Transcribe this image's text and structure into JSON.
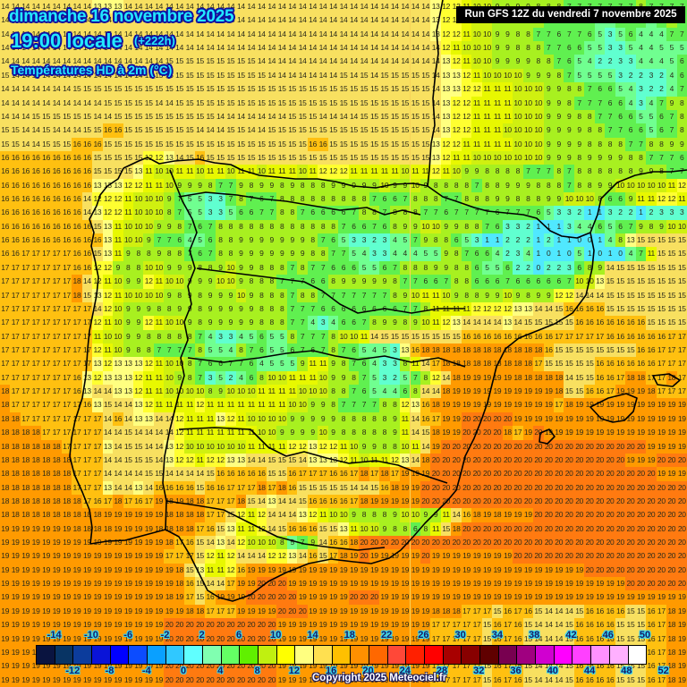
{
  "header": {
    "date": "dimanche 16 novembre 2025",
    "time": "19:00 locale",
    "lead": "(+222h)",
    "parameter": "Températures HD à 2m (°C)"
  },
  "run_banner": "Run GFS 12Z du vendredi 7 novembre 2025",
  "copyright": "Copyright 2025 Meteociel.fr",
  "legend": {
    "colors": [
      "#0a1440",
      "#083464",
      "#0c3c9c",
      "#0a14d8",
      "#0000ff",
      "#0c4cff",
      "#0aa0ff",
      "#30c8ff",
      "#60ffff",
      "#80ffb0",
      "#64ff64",
      "#60f000",
      "#c0f010",
      "#ffff00",
      "#ffff80",
      "#ffe050",
      "#ffc000",
      "#ff9000",
      "#ff6800",
      "#ff4838",
      "#ff2000",
      "#ff0000",
      "#a80000",
      "#880000",
      "#600000",
      "#780050",
      "#a00080",
      "#d000d0",
      "#ff00ff",
      "#ff40ff",
      "#ff90ff",
      "#ffb0ff",
      "#ffffff"
    ],
    "top_labels": [
      "-14",
      "-10",
      "-6",
      "-2",
      "2",
      "6",
      "10",
      "14",
      "18",
      "22",
      "26",
      "30",
      "34",
      "38",
      "42",
      "46",
      "50"
    ],
    "bottom_labels": [
      "-12",
      "-8",
      "-4",
      "0",
      "4",
      "8",
      "12",
      "16",
      "20",
      "24",
      "28",
      "32",
      "36",
      "40",
      "44",
      "48",
      "52"
    ]
  },
  "map": {
    "cols": 67,
    "rows": 46,
    "grid": [
      "14 14 14 14 14 14 14 14 14 13 13 13 14 14 14 14 14 14 14 14 14 14 14 14 14 14 14 14 14 14 14 14 14 14 14 14 14 14 14 14 14 14 13 12 12 11 10 10 9 9 9 9 8 8 8 7 7 7 7 7 7 7 8 7 7 7 7",
      "14 14 14 14 14 14 14 14 14 14 14 14 14 14 14 14 14 14 14 14 14 14 14 14 14 14 14 14 14 14 14 14 14 14 14 14 14 14 14 14 14 14 13 12 12 11 10 10 9 9 8 8 8 7 7 6 7 6 5 5 6 7 6 5 6 8 6",
      "14 14 14 14 14 14 14 14 14 14 14 14 14 14 14 14 14 14 14 14 14 14 14 14 14 14 14 14 14 14 14 14 14 14 14 14 14 14 14 14 14 14 13 12 12 11 10 10 9 9 8 8 7 7 6 7 7 6 5 3 5 6 4 4 4 7 7",
      "14 14 14 14 14 14 14 14 14 14 14 14 14 14 14 14 14 14 14 14 14 14 14 14 14 14 14 14 14 14 14 14 14 14 14 14 14 14 14 14 14 14 14 12 11 10 10 10 9 9 8 8 8 7 7 6 6 5 5 3 3 5 4 4 5 5 5",
      "14 14 14 14 14 14 14 14 14 14 14 14 14 14 14 14 15 15 15 15 15 15 15 15 15 14 14 14 14 14 14 14 14 14 14 14 14 14 14 14 14 14 14 13 12 11 10 10 9 9 9 9 8 8 7 6 5 4 2 2 3 3 4 4 4 5 6",
      "15 14 14 14 14 14 14 14 14 14 14 14 14 14 15 15 15 15 15 15 15 15 15 15 15 15 14 14 14 14 14 14 14 15 14 15 14 15 15 15 15 15 14 13 13 12 11 10 10 10 10 9 9 9 8 7 5 5 5 5 3 2 2 3 2 4 6",
      "14 14 14 14 14 14 14 15 15 15 15 15 15 15 15 15 15 15 15 15 15 15 15 15 15 15 15 15 15 15 15 15 15 15 15 15 15 15 15 15 15 15 14 13 13 12 12 11 11 11 10 10 10 9 9 8 8 7 6 6 5 4 3 2 2 4 7",
      "14 14 14 14 14 14 14 14 14 14 15 15 15 15 15 14 14 15 15 15 15 15 15 15 15 15 15 15 15 15 15 15 15 15 15 15 15 15 15 15 15 15 14 13 12 12 11 11 11 11 10 10 10 9 9 8 7 7 7 6 6 4 3 4 7 9 8",
      "14 14 14 15 15 15 15 15 15 14 14 15 15 15 15 15 15 15 15 15 15 14 14 14 14 14 14 14 15 15 15 14 14 14 14 15 15 15 15 15 15 15 14 13 12 12 11 11 11 11 10 10 10 9 9 9 8 8 7 7 6 6 5 5 6 7 8",
      "15 15 14 14 15 14 14 14 15 15 16 16 15 15 15 15 15 15 15 14 14 14 15 15 14 14 15 15 15 15 15 15 15 15 15 15 15 15 15 15 15 15 14 13 12 12 11 11 11 10 10 10 10 9 9 9 9 8 8 7 7 6 6 5 6 7 8",
      "15 15 14 14 15 15 15 16 16 16 15 15 15 15 15 15 15 15 15 15 15 15 15 15 15 15 15 15 15 15 16 16 15 15 15 15 15 15 15 15 15 15 13 12 12 11 11 11 11 11 10 10 10 9 9 9 9 8 8 8 8 7 7 8 8 9 9",
      "16 16 16 16 16 16 16 16 16 15 15 15 15 15 12 12 13 14 15 16 15 15 15 15 15 15 15 15 15 15 15 15 15 15 15 15 15 15 15 15 15 15 13 12 11 11 10 10 10 10 10 10 10 9 9 9 8 9 9 9 9 8 8 7 7 7 6",
      "16 16 16 16 16 16 16 16 16 15 15 15 15 13 11 10 10 11 11 10 11 11 10 11 11 10 11 11 11 10 11 12 12 12 11 11 11 11 11 10 11 11 12 11 10 9 9 8 8 8 8 7 7 7 8 7 8 8 8 8 8 8 9 9 8 7 7",
      "16 16 16 16 16 16 16 16 16 13 13 13 12 12 11 11 10 9 9 9 8 7 7 9 8 9 9 8 9 8 8 8 9 9 9 9 9 10 9 9 10 9 8 8 8 8 7 8 8 9 9 9 8 8 8 7 8 8 9 9 10 10 10 10 10 11 12",
      "16 16 16 16 16 16 16 16 14 12 12 12 11 10 10 10 9 7 5 5 3 3 7 8 7 6 7 8 8 8 8 8 8 8 8 8 7 6 6 7 8 8 8 7 7 8 8 8 9 9 8 8 8 9 9 10 10 10 8 6 6 9 11 11 12 12 11",
      "16 16 16 16 16 16 16 16 14 13 12 12 11 10 10 10 8 7 5 5 3 3 5 6 6 7 7 8 8 7 6 6 6 6 7 8 8 7 8 8 8 7 7 6 7 7 7 7 6 7 7 7 6 5 3 3 2 1 1 3 2 2 1 2 3 3 3",
      "16 16 16 16 16 16 16 16 16 15 13 11 10 10 10 9 9 8 7 6 7 8 8 8 8 8 8 8 8 8 8 8 8 7 6 6 7 6 8 9 9 10 10 9 9 8 8 7 6 3 3 2 1 1 1 3 4 4 6 5 6 7 9 8 9 10 10",
      "16 16 16 16 16 16 16 16 16 16 13 11 10 10 9 7 7 6 4 5 6 8 8 9 9 9 9 9 9 9 8 7 6 5 3 3 2 3 4 5 7 9 8 8 6 5 3 1 1 2 2 2 1 2 1 1 0 0 1 4 8 13 15 15 15 15 15",
      "16 16 17 17 17 17 17 16 16 15 13 11 9 8 8 9 8 8 7 6 7 8 8 9 9 9 9 9 9 9 8 8 7 7 5 4 3 3 4 4 4 5 5 9 8 7 6 6 4 2 3 4 1 0 1 0 5 1 0 1 0 4 7 11 15 15 15",
      "17 17 17 17 17 17 17 16 16 12 12 9 8 8 10 10 9 9 9 8 8 9 10 9 9 8 8 8 7 8 7 7 6 6 6 5 5 6 7 8 8 8 9 9 8 8 6 5 5 6 2 2 0 2 2 3 6 8 9 14 15 15 15 15 15 15 15",
      "17 17 17 17 17 17 17 18 14 12 11 10 9 9 12 11 10 10 9 9 9 10 10 9 8 8 8 7 7 7 6 6 8 9 9 9 9 9 8 7 7 6 6 7 8 8 6 6 6 7 6 6 6 6 6 7 10 10 13 15 15 15 15 15 15 15 15",
      "17 17 17 17 17 17 17 18 15 13 12 11 10 10 10 10 9 8 9 8 9 9 9 10 9 8 8 8 7 8 8 7 7 7 7 7 7 7 8 9 10 11 11 10 9 8 8 9 9 10 9 8 9 9 12 12 14 14 14 15 15 15 15 15 15 15 15",
      "17 17 17 17 17 17 17 17 17 14 12 10 9 9 9 8 8 9 9 8 9 9 9 9 9 8 8 8 7 7 7 6 6 6 6 6 6 6 6 7 7 8 11 11 11 11 12 12 12 12 13 13 14 14 15 16 16 16 16 15 15 15 15 15 15 15 15",
      "17 17 17 17 17 17 17 17 17 12 11 10 9 9 12 11 10 10 9 8 9 9 9 9 9 8 8 8 7 7 4 3 4 6 6 7 8 9 9 8 9 10 11 12 13 14 14 14 14 13 14 15 15 15 15 15 16 16 16 16 16 16 16 15 15 15 15",
      "17 17 17 17 17 17 17 17 17 11 10 10 9 9 8 8 8 8 8 7 4 3 3 4 5 6 5 5 8 7 7 7 8 10 10 11 14 15 15 15 15 15 15 15 15 16 16 16 16 16 16 16 16 16 17 17 17 17 17 16 16 16 16 16 16 17 17",
      "17 17 17 17 17 17 17 17 17 12 11 10 9 8 8 7 7 7 7 8 5 5 4 8 7 6 5 5 6 7 6 7 8 7 6 5 4 5 3 13 16 18 18 18 18 18 18 18 18 18 18 18 18 16 15 15 15 15 15 15 15 15 16 16 17 17 17",
      "17 17 17 17 17 17 17 17 17 13 12 13 13 13 12 11 10 10 8 7 6 6 7 7 6 4 5 5 5 9 11 11 9 8 7 6 4 3 3 8 11 14 17 18 18 18 18 18 18 18 18 18 17 15 15 15 15 15 16 16 16 16 16 16 17 17 17",
      "17 17 17 17 17 17 17 16 13 12 13 13 13 12 11 11 10 9 8 7 3 5 2 4 6 8 10 10 11 11 11 10 9 9 8 7 5 3 2 5 7 8 12 14 18 19 19 19 19 19 18 18 18 18 18 14 15 15 16 16 17 18 18 17 17 18 17",
      "18 17 17 17 17 17 17 16 13 14 14 13 13 12 11 11 10 10 10 10 8 9 10 10 10 11 11 11 11 10 10 10 8 8 7 6 5 4 4 6 8 14 14 18 19 19 19 19 19 19 19 19 19 19 18 15 15 16 16 17 19 19 19 18 17 17 17",
      "18 17 17 17 17 17 17 17 16 13 15 14 14 13 12 11 11 11 11 12 11 11 11 11 11 11 11 11 10 10 9 9 8 7 7 7 7 8 8 12 13 16 18 19 19 19 19 19 19 19 19 19 19 19 17 18 19 19 19 19 19 19 19 19 19 19 19",
      "18 18 17 17 17 17 17 17 17 17 14 16 14 13 13 14 14 12 11 11 11 13 12 11 10 10 10 10 9 9 9 9 9 8 8 8 8 8 9 11 14 16 17 19 19 20 20 20 20 20 19 19 19 19 19 19 19 19 19 19 19 19 19 19 19 19 19",
      "18 18 18 18 17 17 17 17 17 17 14 14 15 14 14 14 14 12 11 11 11 11 11 11 11 10 10 9 9 9 9 10 9 8 8 8 8 8 9 11 14 15 18 19 19 20 20 20 20 18 17 19 20 19 19 19 19 19 19 19 19 19 19 19 19 19 19",
      "18 18 18 18 18 18 17 17 17 17 13 14 15 15 14 14 13 12 10 10 10 10 10 10 11 11 11 11 12 12 13 12 12 11 10 9 9 8 8 10 11 14 19 20 20 20 20 20 20 20 20 20 20 20 20 20 20 20 20 20 20 20 20 19 19 19 19",
      "18 18 18 18 18 18 18 17 17 17 14 14 15 15 15 14 13 12 12 11 12 12 13 13 14 14 15 15 15 14 13 13 13 12 11 10 11 11 12 13 14 18 20 20 20 20 20 20 20 20 20 20 20 20 20 20 20 20 20 20 20 19 19 19 20 20 20",
      "18 18 18 18 18 18 18 17 17 17 14 14 14 14 15 15 14 14 14 14 15 16 16 16 16 16 15 15 16 17 17 17 16 16 17 18 17 18 17 19 19 19 20 20 20 20 20 20 20 20 20 20 20 20 20 20 20 20 20 20 20 20 20 20 19 19 19",
      "18 18 18 18 18 18 18 17 17 17 13 14 14 13 14 16 16 16 16 15 16 16 17 17 17 18 17 18 16 15 15 15 15 15 14 14 15 16 18 19 19 20 20 20 20 20 20 20 20 20 20 20 20 20 20 20 20 20 20 20 20 20 20 20 20 20 20",
      "18 18 18 18 18 18 18 18 17 16 17 18 17 16 17 19 18 19 18 18 17 17 17 18 15 14 13 14 14 15 16 16 16 16 17 18 19 19 19 19 19 20 20 20 20 20 20 20 20 20 20 20 20 20 20 20 20 20 20 20 20 20 20 20 20 20 20",
      "18 18 18 18 18 18 18 18 18 18 19 19 19 19 19 19 18 18 18 18 17 17 15 12 11 12 14 14 14 13 12 11 10 10 9 8 8 8 9 10 10 9 9 11 14 16 18 19 18 19 19 19 20 20 20 20 20 20 20 20 20 20 20 20 20 20 20",
      "19 19 19 19 19 19 19 18 18 18 18 19 19 19 19 18 18 18 18 17 16 15 13 11 11 12 14 15 16 16 16 15 15 13 11 10 10 9 8 8 6 8 11 15 18 20 20 20 20 20 20 20 20 20 20 20 20 20 20 20 20 20 20 20 20 20 20",
      "19 19 19 19 19 19 19 19 19 19 19 19 19 19 19 19 18 17 16 15 14 13 14 12 10 10 10 8 5 7 9 14 16 16 18 20 20 20 20 20 20 20 20 20 20 20 20 20 20 20 20 20 20 20 20 20 20 20 20 20 20 20 20 20 20 20 20",
      "19 19 19 19 19 19 19 19 19 19 19 19 19 19 19 19 17 17 17 15 12 11 12 14 14 14 12 12 13 14 16 15 17 18 19 20 19 19 19 19 19 20 19 19 19 19 19 19 19 19 20 20 20 20 20 20 20 20 20 20 20 20 20 20 20 20 20",
      "19 19 19 19 19 19 19 19 19 19 19 19 19 19 19 19 19 18 15 13 11 11 12 16 19 19 19 19 19 19 19 19 19 19 19 19 19 19 19 19 19 19 19 19 19 19 19 19 19 19 19 19 19 19 19 19 19 20 20 20 20 20 20 20 20 20 20",
      "19 19 19 19 19 19 19 19 19 19 19 19 19 19 19 19 19 18 16 15 14 14 17 19 19 20 20 20 19 19 19 19 19 19 19 19 19 19 19 19 19 19 19 19 19 19 19 19 19 19 19 19 19 19 19 19 19 19 19 19 19 20 20 20 20 20 20",
      "19 19 19 19 19 19 19 19 19 19 19 19 19 19 19 19 18 19 17 15 16 19 19 19 20 20 20 20 20 19 19 19 19 19 20 20 20 19 19 19 19 19 19 19 19 19 19 19 19 19 19 19 19 19 19 19 19 19 19 19 19 19 19 19 19 19 19",
      "19 19 19 19 19 19 19 19 19 19 19 19 19 19 19 19 19 19 18 18 17 17 17 19 19 19 19 20 20 20 19 19 19 19 19 19 19 19 19 19 19 19 18 18 18 17 17 17 15 16 17 16 15 14 14 14 15 16 16 16 16 15 15 16 17 18 19",
      "19 19 19 19 19 19 19 19 19 19 19 19 19 19 19 19 20 20 20 20 20 20 20 20 20 20 20 19 19 19 19 19 19 19 19 19 19 19 19 19 19 19 17 17 17 17 17 15 16 17 16 15 14 14 14 15 16 16 16 16 15 15 15 16 17 18 19"
    ]
  }
}
